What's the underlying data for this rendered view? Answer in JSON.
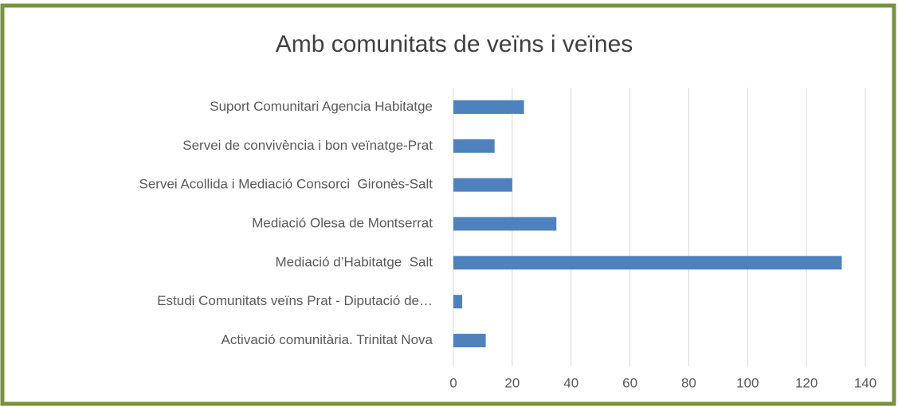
{
  "chart_data": {
    "type": "bar",
    "orientation": "horizontal",
    "title": "Amb comunitats de veïns i veïnes",
    "categories": [
      "Suport Comunitari Agencia Habitatge",
      "Servei de convivència i bon veïnatge-Prat",
      "Servei Acollida i Mediació Consorci  Gironès-Salt",
      "Mediació Olesa de Montserrat",
      "Mediació d’Habitatge  Salt",
      "Estudi Comunitats veïns Prat - Diputació de…",
      "Activació comunitària. Trinitat Nova"
    ],
    "values": [
      24,
      14,
      20,
      35,
      132,
      3,
      11
    ],
    "color": "#4f81bd",
    "xlim": [
      0,
      140
    ],
    "xticks": [
      0,
      20,
      40,
      60,
      80,
      100,
      120,
      140
    ],
    "grid": true
  }
}
